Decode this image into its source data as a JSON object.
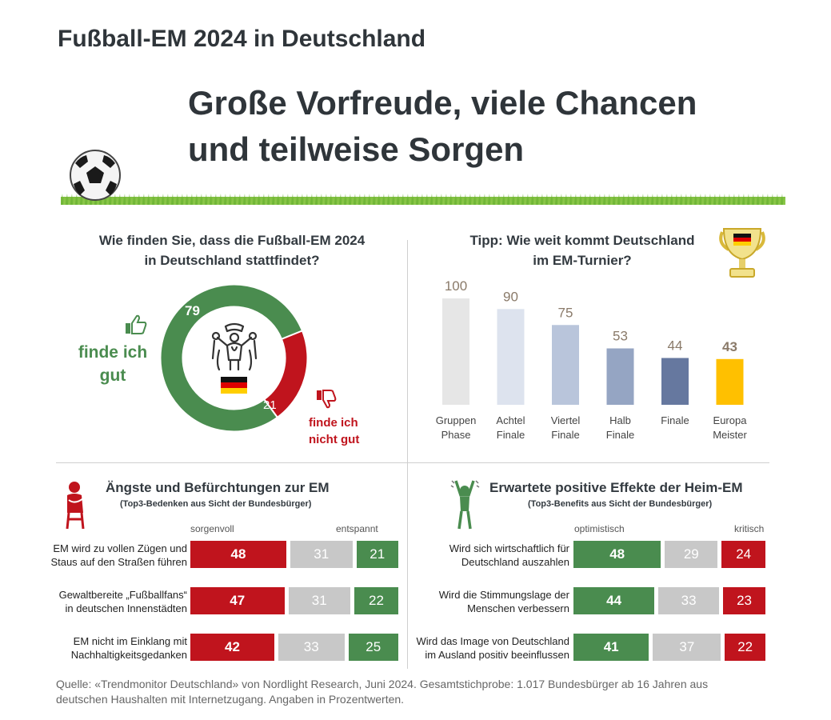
{
  "header": "Fußball-EM 2024 in Deutschland",
  "title_line1": "Große Vorfreude, viele Chancen",
  "title_line2": "und teilweise Sorgen",
  "colors": {
    "green": "#4a8c4f",
    "red": "#c0141d",
    "gray": "#c8c8c8",
    "gold": "#ffc000"
  },
  "icons": [
    "soccer-ball-icon",
    "trophy-icon",
    "thumbs-up-icon",
    "thumbs-down-icon",
    "fan-icon",
    "worried-person-icon",
    "cheering-person-icon",
    "germany-flag-icon"
  ],
  "chart_data": [
    {
      "type": "pie",
      "title": "Wie finden Sie, dass die Fußball-EM 2024 in Deutschland stattfindet?",
      "title_line1": "Wie finden Sie, dass die Fußball-EM 2024",
      "title_line2": "in Deutschland stattfindet?",
      "slices": [
        {
          "label": "finde ich gut",
          "label_line1": "finde ich",
          "label_line2": "gut",
          "value": 79,
          "value_text": "79",
          "color": "#4a8c4f"
        },
        {
          "label": "finde ich nicht gut",
          "label_line1": "finde ich",
          "label_line2": "nicht gut",
          "value": 21,
          "value_text": "21",
          "color": "#c0141d"
        }
      ]
    },
    {
      "type": "bar",
      "title": "Tipp: Wie weit kommt Deutschland im EM-Turnier?",
      "title_line1": "Tipp: Wie weit kommt Deutschland",
      "title_line2": "im EM-Turnier?",
      "ylim": [
        0,
        100
      ],
      "categories": [
        "Gruppen Phase",
        "Achtel Finale",
        "Viertel Finale",
        "Halb Finale",
        "Finale",
        "Europa Meister"
      ],
      "category_lines": [
        [
          "Gruppen",
          "Phase"
        ],
        [
          "Achtel",
          "Finale"
        ],
        [
          "Viertel",
          "Finale"
        ],
        [
          "Halb",
          "Finale"
        ],
        [
          "Finale",
          ""
        ],
        [
          "Europa",
          "Meister"
        ]
      ],
      "values": [
        100,
        90,
        75,
        53,
        44,
        43
      ],
      "value_texts": [
        "100",
        "90",
        "75",
        "53",
        "44",
        "43"
      ],
      "colors": [
        "#e6e6e6",
        "#dde3ee",
        "#b9c5db",
        "#95a5c3",
        "#66789f",
        "#ffc000"
      ]
    },
    {
      "type": "bar",
      "title": "Ängste und Befürchtungen zur EM",
      "subtitle": "(Top3-Bedenken aus Sicht der Bundesbürger)",
      "left_label": "sorgenvoll",
      "right_label": "entspannt",
      "categories": [
        "EM wird zu vollen Zügen und Staus auf den Straßen führen",
        "Gewaltbereite „Fußballfans“ in deutschen Innenstädten",
        "EM nicht im Einklang mit Nachhaltigkeitsgedanken"
      ],
      "category_lines": [
        [
          "EM wird zu vollen Zügen und",
          "Staus auf den Straßen führen"
        ],
        [
          "Gewaltbereite „Fußballfans“",
          "in deutschen Innenstädten"
        ],
        [
          "EM nicht im Einklang mit",
          "Nachhaltigkeitsgedanken"
        ]
      ],
      "series": [
        {
          "values": [
            48,
            47,
            42
          ],
          "value_texts": [
            "48",
            "47",
            "42"
          ],
          "color": "#c0141d"
        },
        {
          "values": [
            31,
            31,
            33
          ],
          "value_texts": [
            "31",
            "31",
            "33"
          ],
          "color": "#c8c8c8"
        },
        {
          "values": [
            21,
            22,
            25
          ],
          "value_texts": [
            "21",
            "22",
            "25"
          ],
          "color": "#4a8c4f"
        }
      ]
    },
    {
      "type": "bar",
      "title": "Erwartete positive Effekte der Heim-EM",
      "subtitle": "(Top3-Benefits aus Sicht der Bundesbürger)",
      "left_label": "optimistisch",
      "right_label": "kritisch",
      "categories": [
        "Wird sich wirtschaftlich für Deutschland auszahlen",
        "Wird die Stimmungslage der Menschen verbessern",
        "Wird das Image von Deutschland im Ausland positiv beeinflussen"
      ],
      "category_lines": [
        [
          "Wird sich wirtschaftlich für",
          "Deutschland auszahlen"
        ],
        [
          "Wird die Stimmungslage der",
          "Menschen verbessern"
        ],
        [
          "Wird das Image von Deutschland",
          "im Ausland positiv beeinflussen"
        ]
      ],
      "series": [
        {
          "values": [
            48,
            44,
            41
          ],
          "value_texts": [
            "48",
            "44",
            "41"
          ],
          "color": "#4a8c4f"
        },
        {
          "values": [
            29,
            33,
            37
          ],
          "value_texts": [
            "29",
            "33",
            "37"
          ],
          "color": "#c8c8c8"
        },
        {
          "values": [
            24,
            23,
            22
          ],
          "value_texts": [
            "24",
            "23",
            "22"
          ],
          "color": "#c0141d"
        }
      ]
    }
  ],
  "source_line1": "Quelle: «Trendmonitor Deutschland» von Nordlight Research,  Juni 2024. Gesamtstichprobe: 1.017 Bundesbürger ab 16 Jahren aus",
  "source_line2": "deutschen  Haushalten mit Internetzugang. Angaben in Prozentwerten."
}
